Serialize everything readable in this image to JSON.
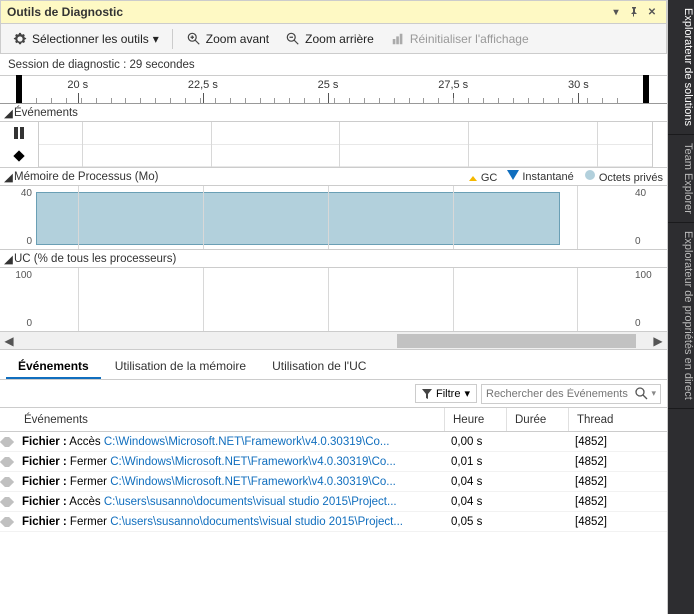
{
  "title": "Outils de Diagnostic",
  "toolbar": {
    "select_tools": "Sélectionner les outils",
    "zoom_in": "Zoom avant",
    "zoom_out": "Zoom arrière",
    "reset": "Réinitialiser l'affichage"
  },
  "session": "Session de diagnostic : 29 secondes",
  "ruler": {
    "ticks": [
      {
        "label": "20 s",
        "pos_pct": 7
      },
      {
        "label": "22,5 s",
        "pos_pct": 28
      },
      {
        "label": "25 s",
        "pos_pct": 49
      },
      {
        "label": "27,5 s",
        "pos_pct": 70
      },
      {
        "label": "30 s",
        "pos_pct": 91
      }
    ],
    "minor_count": 40
  },
  "lanes": {
    "events_label": "Événements",
    "memory_label": "Mémoire de Processus (Mo)",
    "memory_legend": {
      "gc": "GC",
      "snapshot": "Instantané",
      "private": "Octets privés"
    },
    "memory_ymax": "40",
    "memory_ymin": "0",
    "memory_fill_color": "#b2d0dc",
    "memory_fill_width_pct": 88,
    "cpu_label": "UC (% de tous les processeurs)",
    "cpu_ymax": "100",
    "cpu_ymin": "0"
  },
  "tabs": {
    "events": "Événements",
    "memory": "Utilisation de la mémoire",
    "cpu": "Utilisation de l'UC"
  },
  "filter": {
    "label": "Filtre",
    "search_placeholder": "Rechercher des Événements"
  },
  "table": {
    "columns": {
      "events": "Événements",
      "time": "Heure",
      "duration": "Durée",
      "thread": "Thread"
    },
    "col_widths": {
      "events": 443,
      "time": 62,
      "duration": 62,
      "thread": 80
    },
    "rows": [
      {
        "prefix": "Fichier :",
        "action": "Accès",
        "path": "C:\\Windows\\Microsoft.NET\\Framework\\v4.0.30319\\Co...",
        "time": "0,00 s",
        "duration": "",
        "thread": "[4852]"
      },
      {
        "prefix": "Fichier :",
        "action": "Fermer",
        "path": "C:\\Windows\\Microsoft.NET\\Framework\\v4.0.30319\\Co...",
        "time": "0,01 s",
        "duration": "",
        "thread": "[4852]"
      },
      {
        "prefix": "Fichier :",
        "action": "Fermer",
        "path": "C:\\Windows\\Microsoft.NET\\Framework\\v4.0.30319\\Co...",
        "time": "0,04 s",
        "duration": "",
        "thread": "[4852]"
      },
      {
        "prefix": "Fichier :",
        "action": "Accès",
        "path": "C:\\users\\susanno\\documents\\visual studio 2015\\Project...",
        "time": "0,04 s",
        "duration": "",
        "thread": "[4852]"
      },
      {
        "prefix": "Fichier :",
        "action": "Fermer",
        "path": "C:\\users\\susanno\\documents\\visual studio 2015\\Project...",
        "time": "0,05 s",
        "duration": "",
        "thread": "[4852]"
      }
    ]
  },
  "sidebar": {
    "tabs": [
      "Explorateur de solutions",
      "Team Explorer",
      "Explorateur de propriétés en direct"
    ]
  },
  "colors": {
    "accent": "#106ebe",
    "titlebar": "#fef9c4",
    "sidebar": "#2d2d30",
    "mem_fill": "#b2d0dc"
  },
  "chart_gridlines_pct": [
    7,
    28,
    49,
    70,
    91
  ]
}
